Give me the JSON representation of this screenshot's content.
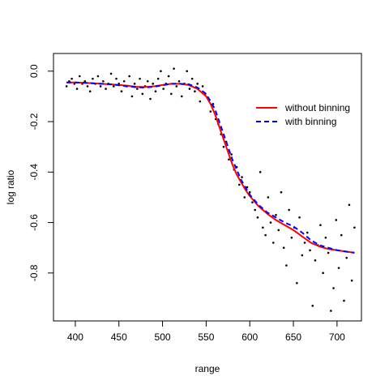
{
  "chart_data": {
    "type": "scatter",
    "title": "",
    "xlabel": "range",
    "ylabel": "log ratio",
    "xlim": [
      375,
      728
    ],
    "ylim": [
      -0.99,
      0.07
    ],
    "x_ticks": [
      400,
      450,
      500,
      550,
      600,
      650,
      700
    ],
    "y_ticks": [
      0.0,
      -0.2,
      -0.4,
      -0.6,
      -0.8
    ],
    "x_tick_labels": [
      "400",
      "450",
      "500",
      "550",
      "600",
      "650",
      "700"
    ],
    "y_tick_labels": [
      "0.0",
      "-0.2",
      "-0.4",
      "-0.6",
      "-0.8"
    ],
    "grid": false,
    "legend_position": "right",
    "series": [
      {
        "name": "without binning",
        "kind": "line",
        "color": "#ff0000",
        "dash": "solid",
        "x": [
          390,
          400,
          410,
          420,
          430,
          440,
          450,
          460,
          470,
          480,
          490,
          500,
          510,
          520,
          530,
          540,
          550,
          555,
          560,
          565,
          570,
          575,
          580,
          585,
          590,
          595,
          600,
          605,
          610,
          620,
          630,
          640,
          650,
          660,
          670,
          680,
          690,
          700,
          710,
          720
        ],
        "y": [
          -0.045,
          -0.045,
          -0.046,
          -0.048,
          -0.05,
          -0.052,
          -0.055,
          -0.058,
          -0.062,
          -0.063,
          -0.06,
          -0.055,
          -0.05,
          -0.05,
          -0.055,
          -0.07,
          -0.1,
          -0.13,
          -0.17,
          -0.22,
          -0.27,
          -0.32,
          -0.37,
          -0.41,
          -0.44,
          -0.47,
          -0.495,
          -0.515,
          -0.535,
          -0.565,
          -0.59,
          -0.61,
          -0.63,
          -0.655,
          -0.68,
          -0.695,
          -0.705,
          -0.71,
          -0.715,
          -0.72
        ]
      },
      {
        "name": "with binning",
        "kind": "line",
        "color": "#0000ff",
        "dash": "dashed",
        "x": [
          390,
          400,
          410,
          420,
          430,
          440,
          450,
          460,
          470,
          480,
          490,
          500,
          510,
          520,
          530,
          540,
          550,
          560,
          570,
          580,
          590,
          600,
          610,
          620,
          630,
          640,
          650,
          660,
          670,
          680,
          690,
          700,
          710,
          720
        ],
        "y": [
          -0.045,
          -0.045,
          -0.046,
          -0.048,
          -0.05,
          -0.052,
          -0.056,
          -0.06,
          -0.064,
          -0.065,
          -0.062,
          -0.056,
          -0.05,
          -0.05,
          -0.052,
          -0.065,
          -0.09,
          -0.15,
          -0.25,
          -0.35,
          -0.43,
          -0.49,
          -0.53,
          -0.56,
          -0.58,
          -0.6,
          -0.615,
          -0.64,
          -0.67,
          -0.69,
          -0.7,
          -0.71,
          -0.715,
          -0.72
        ]
      },
      {
        "name": "",
        "kind": "points",
        "color": "#000000",
        "x": [
          390,
          393,
          396,
          399,
          402,
          405,
          408,
          411,
          414,
          417,
          420,
          423,
          426,
          429,
          432,
          435,
          438,
          441,
          444,
          447,
          450,
          453,
          456,
          459,
          462,
          465,
          468,
          471,
          474,
          477,
          480,
          483,
          486,
          489,
          492,
          495,
          498,
          501,
          504,
          507,
          510,
          513,
          516,
          519,
          522,
          525,
          528,
          531,
          534,
          537,
          540,
          543,
          546,
          549,
          552,
          555,
          558,
          561,
          564,
          567,
          570,
          573,
          576,
          579,
          582,
          585,
          588,
          591,
          594,
          597,
          600,
          603,
          606,
          609,
          612,
          615,
          618,
          621,
          624,
          627,
          630,
          633,
          636,
          639,
          642,
          645,
          648,
          651,
          654,
          657,
          660,
          663,
          666,
          669,
          672,
          675,
          678,
          681,
          684,
          687,
          690,
          693,
          696,
          699,
          702,
          705,
          708,
          711,
          714,
          717,
          720
        ],
        "y": [
          -0.06,
          -0.04,
          -0.03,
          -0.05,
          -0.07,
          -0.02,
          -0.05,
          -0.04,
          -0.06,
          -0.08,
          -0.03,
          -0.05,
          -0.02,
          -0.06,
          -0.04,
          -0.07,
          -0.05,
          -0.01,
          -0.06,
          -0.03,
          -0.05,
          -0.08,
          -0.04,
          -0.06,
          -0.02,
          -0.1,
          -0.05,
          -0.07,
          -0.03,
          -0.09,
          -0.06,
          -0.04,
          -0.11,
          -0.05,
          -0.08,
          -0.03,
          0.0,
          -0.07,
          -0.05,
          -0.02,
          -0.09,
          0.01,
          -0.06,
          -0.04,
          -0.1,
          -0.05,
          0.0,
          -0.07,
          -0.03,
          -0.08,
          -0.05,
          -0.12,
          -0.06,
          -0.09,
          -0.11,
          -0.16,
          -0.13,
          -0.19,
          -0.21,
          -0.25,
          -0.3,
          -0.28,
          -0.35,
          -0.33,
          -0.39,
          -0.38,
          -0.45,
          -0.42,
          -0.5,
          -0.46,
          -0.48,
          -0.52,
          -0.55,
          -0.58,
          -0.4,
          -0.62,
          -0.65,
          -0.5,
          -0.6,
          -0.68,
          -0.57,
          -0.63,
          -0.48,
          -0.7,
          -0.77,
          -0.55,
          -0.66,
          -0.62,
          -0.84,
          -0.58,
          -0.73,
          -0.68,
          -0.64,
          -0.71,
          -0.93,
          -0.75,
          -0.69,
          -0.61,
          -0.8,
          -0.66,
          -0.72,
          -0.95,
          -0.86,
          -0.59,
          -0.78,
          -0.65,
          -0.91,
          -0.74,
          -0.53,
          -0.83,
          -0.62
        ]
      }
    ]
  }
}
